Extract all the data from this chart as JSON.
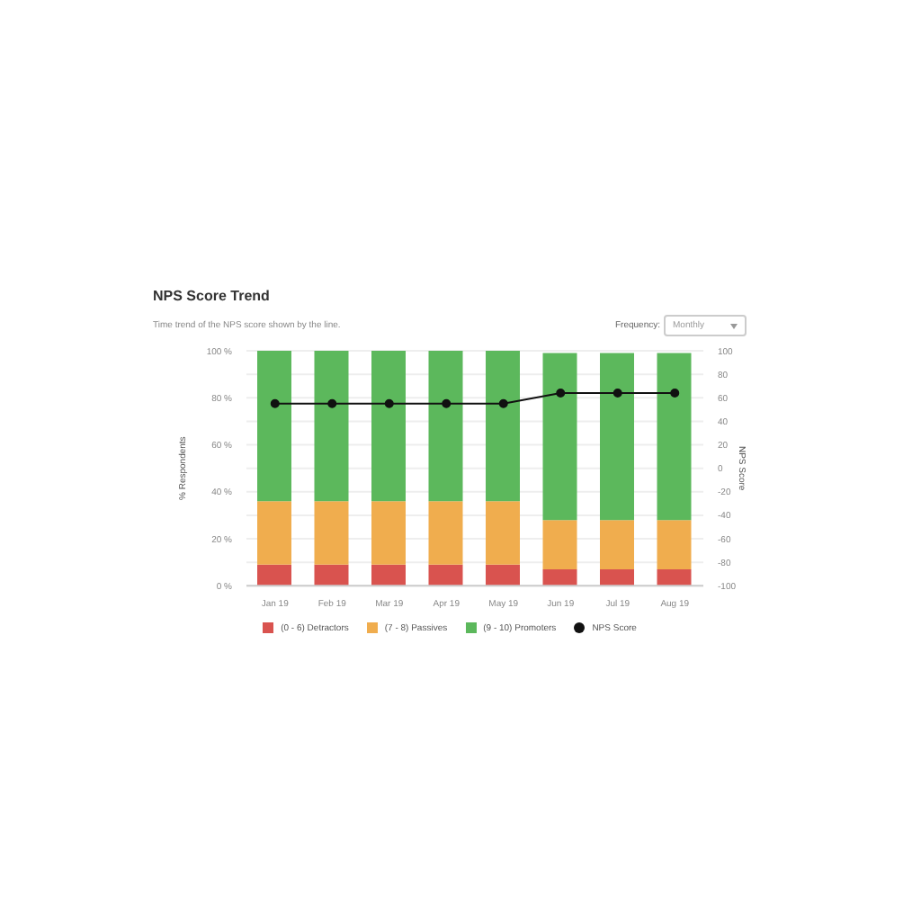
{
  "chart_data": {
    "type": "bar",
    "title": "NPS Score Trend",
    "subtitle": "Time trend of the NPS score shown by the line.",
    "annotations": [
      "Frequency:",
      "Monthly"
    ],
    "categories": [
      "Jan 19",
      "Feb 19",
      "Mar 19",
      "Apr 19",
      "May 19",
      "Jun 19",
      "Jul 19",
      "Aug 19"
    ],
    "stacked": true,
    "series": [
      {
        "name": "(0 - 6) Detractors",
        "color": "#d9534f",
        "values": [
          9,
          9,
          9,
          9,
          9,
          7,
          7,
          7
        ]
      },
      {
        "name": "(7 - 8) Passives",
        "color": "#f0ad4e",
        "values": [
          27,
          27,
          27,
          27,
          27,
          21,
          21,
          21
        ]
      },
      {
        "name": "(9 - 10) Promoters",
        "color": "#5cb85c",
        "values": [
          64,
          64,
          64,
          64,
          64,
          71,
          71,
          71
        ]
      },
      {
        "name": "NPS Score",
        "type": "line",
        "axis": "y2",
        "color": "#111111",
        "marker": "circle",
        "values": [
          55,
          55,
          55,
          55,
          55,
          64,
          64,
          64
        ]
      }
    ],
    "ylabel": "% Respondents",
    "y2label": "NPS Score",
    "ylim": [
      0,
      100
    ],
    "yticks": [
      {
        "value": 0,
        "label": "0 %"
      },
      {
        "value": 10,
        "label": null
      },
      {
        "value": 20,
        "label": "20 %"
      },
      {
        "value": 30,
        "label": null
      },
      {
        "value": 40,
        "label": "40 %"
      },
      {
        "value": 50,
        "label": null
      },
      {
        "value": 60,
        "label": "60 %"
      },
      {
        "value": 70,
        "label": null
      },
      {
        "value": 80,
        "label": "80 %"
      },
      {
        "value": 90,
        "label": null
      },
      {
        "value": 100,
        "label": "100 %"
      }
    ],
    "y2lim": [
      -100,
      100
    ],
    "y2ticks": [
      -100,
      -80,
      -60,
      -40,
      -20,
      0,
      20,
      40,
      60,
      80,
      100
    ],
    "grid": "y",
    "legend": "bottom"
  }
}
